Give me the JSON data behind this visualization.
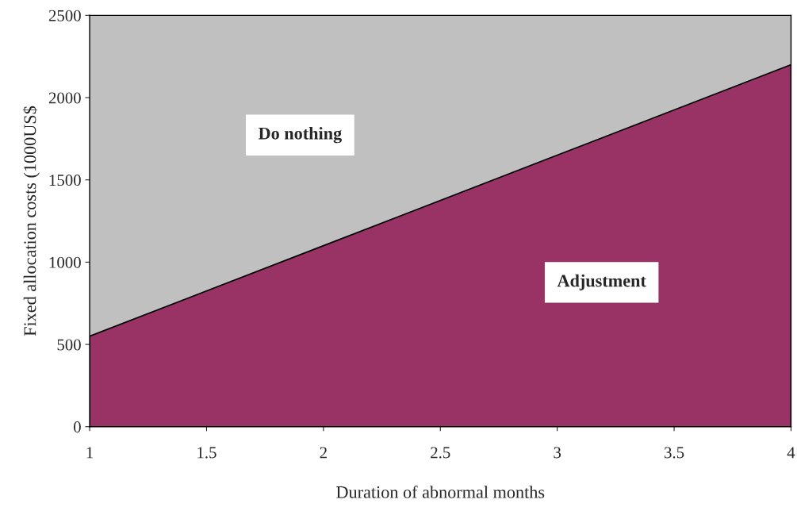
{
  "chart_data": {
    "type": "area",
    "stacked": true,
    "xlabel": "Duration of abnormal months",
    "ylabel": "Fixed allocation costs (1000US$",
    "x": [
      1,
      2,
      3,
      4
    ],
    "series": [
      {
        "name": "Adjustment",
        "color": "#993366",
        "values": [
          550,
          1100,
          1650,
          2200
        ]
      },
      {
        "name": "Do nothing",
        "color": "#c0c0c0",
        "values": [
          1950,
          1400,
          850,
          300
        ]
      }
    ],
    "xlim": [
      1,
      4
    ],
    "xticks": [
      1,
      1.5,
      2,
      2.5,
      3,
      3.5,
      4
    ],
    "ylim": [
      0,
      2500
    ],
    "yticks": [
      0,
      500,
      1000,
      1500,
      2000,
      2500
    ],
    "legend": false
  }
}
